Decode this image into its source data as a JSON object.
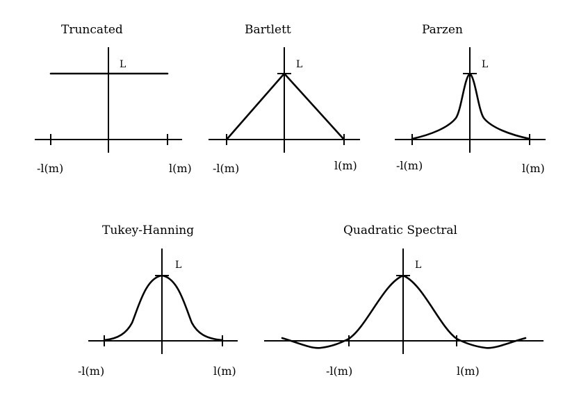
{
  "panels": {
    "truncated": {
      "title": "Truncated",
      "peak_label": "L",
      "neg_tick": "-l(m)",
      "pos_tick": "l(m)"
    },
    "bartlett": {
      "title": "Bartlett",
      "peak_label": "L",
      "neg_tick": "-l(m)",
      "pos_tick": "l(m)"
    },
    "parzen": {
      "title": "Parzen",
      "peak_label": "L",
      "neg_tick": "-l(m)",
      "pos_tick": "l(m)"
    },
    "tukey": {
      "title": "Tukey-Hanning",
      "peak_label": "L",
      "neg_tick": "-l(m)",
      "pos_tick": "l(m)"
    },
    "qs": {
      "title": "Quadratic Spectral",
      "peak_label": "L",
      "neg_tick": "-l(m)",
      "pos_tick": "l(m)"
    }
  }
}
